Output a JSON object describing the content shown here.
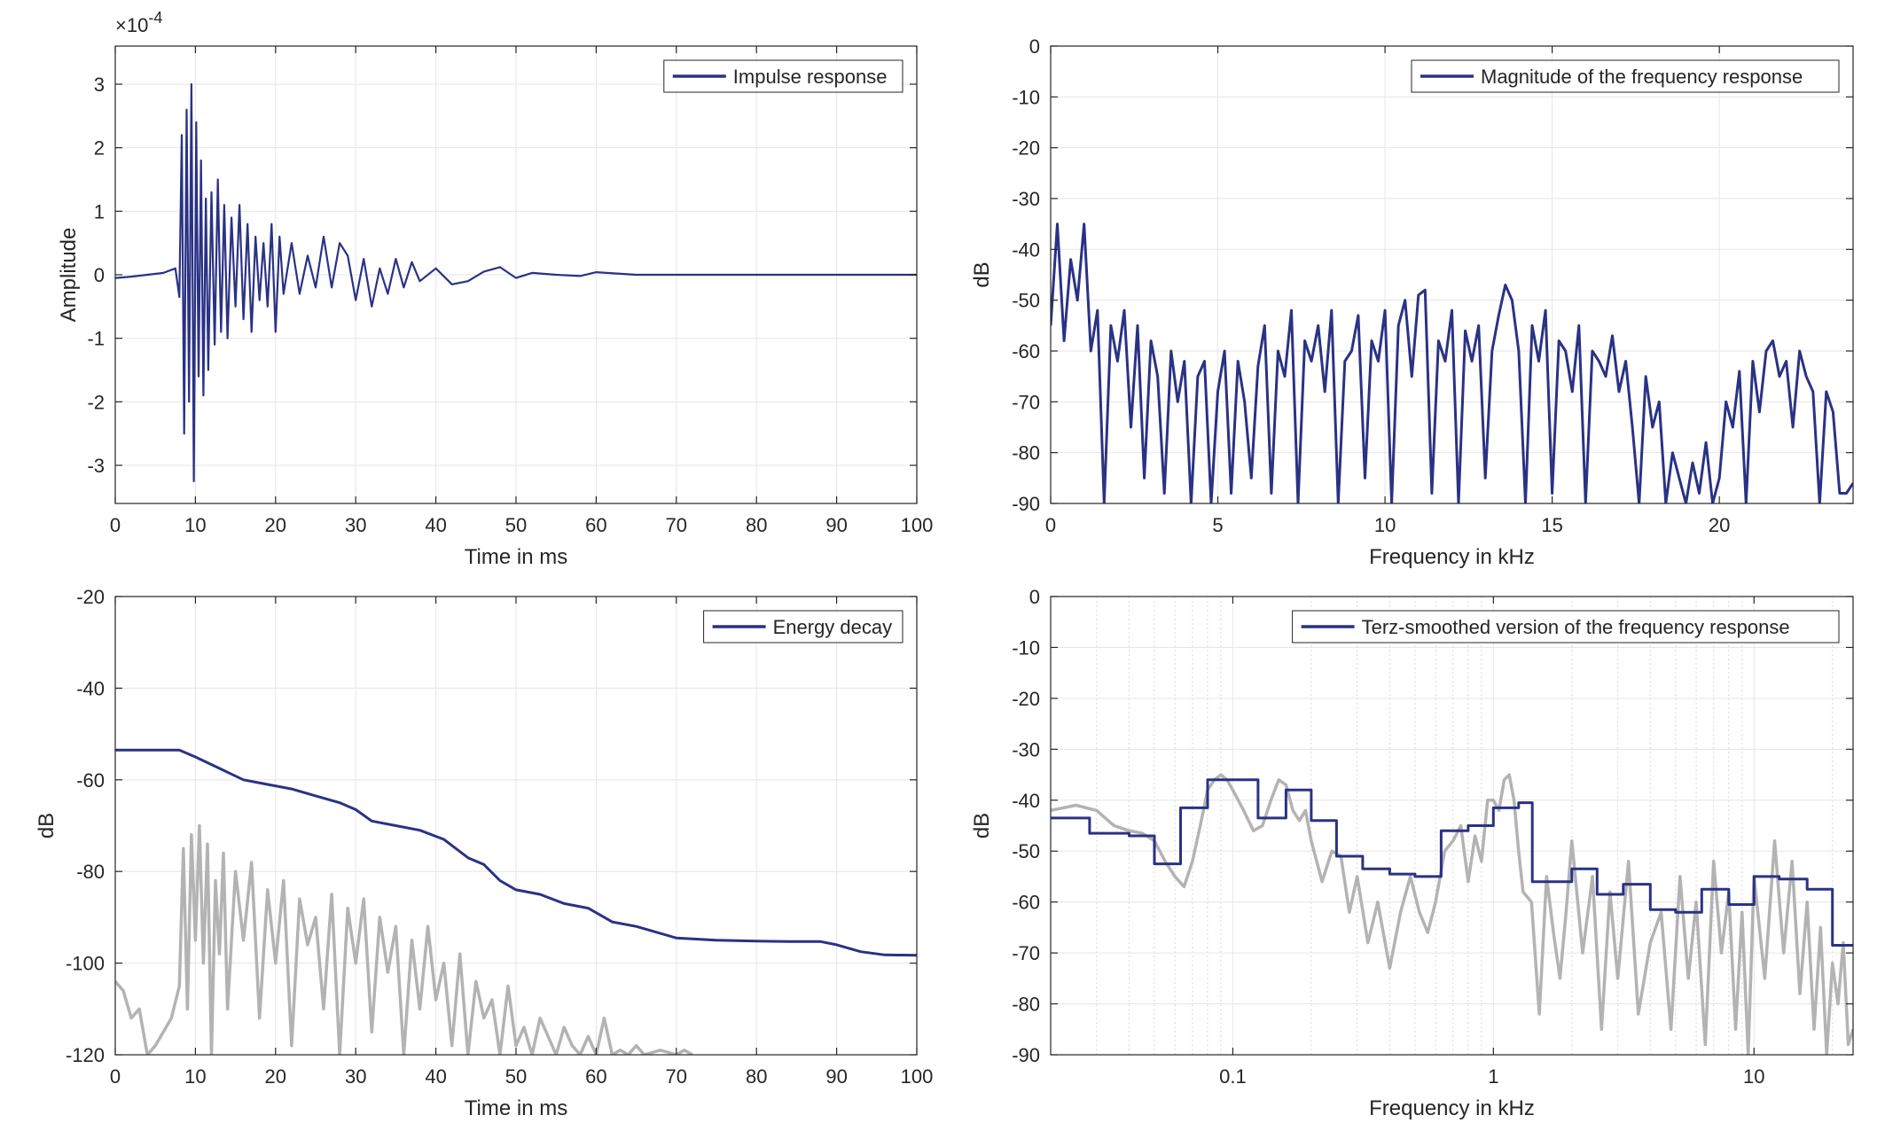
{
  "colors": {
    "series_navy": "#2a3284",
    "series_gray": "#b3b3b3",
    "grid": "#e6e6e6",
    "axis": "#262626"
  },
  "chart_data": [
    {
      "id": "impulse",
      "type": "line",
      "xlabel": "Time in ms",
      "ylabel": "Amplitude",
      "xlim": [
        0,
        100
      ],
      "ylim": [
        -3.6,
        3.6
      ],
      "y_multiplier": "×10",
      "y_multiplier_exponent": "-4",
      "xticks": [
        "0",
        "10",
        "20",
        "30",
        "40",
        "50",
        "60",
        "70",
        "80",
        "90",
        "100"
      ],
      "yticks": [
        "3",
        "2",
        "1",
        "0",
        "-1",
        "-2",
        "-3"
      ],
      "grid": true,
      "legend_position": "top-right",
      "series": [
        {
          "name": "Impulse response",
          "color": "#2a3284",
          "x": [
            0,
            2,
            4,
            6,
            7.5,
            8,
            8.3,
            8.6,
            8.9,
            9.2,
            9.5,
            9.8,
            10.1,
            10.4,
            10.7,
            11,
            11.3,
            11.6,
            12,
            12.4,
            12.8,
            13.2,
            13.6,
            14,
            14.5,
            15,
            15.5,
            16,
            16.5,
            17,
            17.5,
            18,
            18.5,
            19,
            19.5,
            20,
            20.5,
            21,
            22,
            23,
            24,
            25,
            26,
            27,
            28,
            29,
            30,
            31,
            32,
            33,
            34,
            35,
            36,
            37,
            38,
            40,
            42,
            44,
            46,
            48,
            50,
            52,
            55,
            58,
            60,
            65,
            70,
            80,
            90,
            100
          ],
          "y": [
            -0.05,
            -0.03,
            0,
            0.03,
            0.1,
            -0.35,
            2.2,
            -2.5,
            2.6,
            -2.0,
            3.0,
            -3.25,
            2.4,
            -1.6,
            1.8,
            -1.9,
            1.2,
            -1.5,
            1.3,
            -1.1,
            1.5,
            -0.9,
            1.1,
            -1.0,
            0.9,
            -0.5,
            1.1,
            -0.7,
            0.8,
            -0.9,
            0.6,
            -0.4,
            0.5,
            -0.5,
            0.8,
            -0.9,
            0.6,
            -0.3,
            0.5,
            -0.3,
            0.3,
            -0.2,
            0.6,
            -0.2,
            0.5,
            0.3,
            -0.4,
            0.25,
            -0.5,
            0.1,
            -0.3,
            0.25,
            -0.2,
            0.2,
            -0.1,
            0.1,
            -0.15,
            -0.1,
            0.05,
            0.12,
            -0.05,
            0.03,
            0.0,
            -0.02,
            0.04,
            0.0,
            0.0,
            0.0,
            0.0,
            0.0
          ]
        }
      ]
    },
    {
      "id": "magnitude",
      "type": "line",
      "xlabel": "Frequency in kHz",
      "ylabel": "dB",
      "xlim": [
        0,
        24
      ],
      "ylim": [
        -90,
        0
      ],
      "xticks": [
        "0",
        "5",
        "10",
        "15",
        "20"
      ],
      "yticks": [
        "0",
        "-10",
        "-20",
        "-30",
        "-40",
        "-50",
        "-60",
        "-70",
        "-80",
        "-90"
      ],
      "grid": true,
      "legend_position": "top-right",
      "series": [
        {
          "name": "Magnitude of the frequency response",
          "color": "#2a3284",
          "x": [
            0,
            0.2,
            0.4,
            0.6,
            0.8,
            1.0,
            1.2,
            1.4,
            1.6,
            1.8,
            2.0,
            2.2,
            2.4,
            2.6,
            2.8,
            3.0,
            3.2,
            3.4,
            3.6,
            3.8,
            4.0,
            4.2,
            4.4,
            4.6,
            4.8,
            5.0,
            5.2,
            5.4,
            5.6,
            5.8,
            6.0,
            6.2,
            6.4,
            6.6,
            6.8,
            7.0,
            7.2,
            7.4,
            7.6,
            7.8,
            8.0,
            8.2,
            8.4,
            8.6,
            8.8,
            9.0,
            9.2,
            9.4,
            9.6,
            9.8,
            10.0,
            10.2,
            10.4,
            10.6,
            10.8,
            11.0,
            11.2,
            11.4,
            11.6,
            11.8,
            12.0,
            12.2,
            12.4,
            12.6,
            12.8,
            13.0,
            13.2,
            13.4,
            13.6,
            13.8,
            14.0,
            14.2,
            14.4,
            14.6,
            14.8,
            15.0,
            15.2,
            15.4,
            15.6,
            15.8,
            16.0,
            16.2,
            16.4,
            16.6,
            16.8,
            17.0,
            17.2,
            17.4,
            17.6,
            17.8,
            18.0,
            18.2,
            18.4,
            18.6,
            18.8,
            19.0,
            19.2,
            19.4,
            19.6,
            19.8,
            20.0,
            20.2,
            20.4,
            20.6,
            20.8,
            21.0,
            21.2,
            21.4,
            21.6,
            21.8,
            22.0,
            22.2,
            22.4,
            22.6,
            22.8,
            23.0,
            23.2,
            23.4,
            23.6,
            23.8,
            24.0
          ],
          "y": [
            -55,
            -35,
            -58,
            -42,
            -50,
            -35,
            -60,
            -52,
            -90,
            -55,
            -62,
            -52,
            -75,
            -55,
            -85,
            -58,
            -65,
            -88,
            -60,
            -70,
            -62,
            -90,
            -65,
            -62,
            -90,
            -68,
            -60,
            -88,
            -62,
            -70,
            -85,
            -63,
            -55,
            -88,
            -60,
            -65,
            -52,
            -90,
            -58,
            -62,
            -55,
            -68,
            -52,
            -90,
            -62,
            -60,
            -53,
            -85,
            -58,
            -62,
            -52,
            -90,
            -55,
            -50,
            -65,
            -49,
            -48,
            -88,
            -58,
            -62,
            -52,
            -90,
            -56,
            -62,
            -55,
            -85,
            -60,
            -53,
            -47,
            -50,
            -60,
            -90,
            -55,
            -62,
            -52,
            -88,
            -58,
            -60,
            -68,
            -55,
            -90,
            -60,
            -62,
            -65,
            -57,
            -68,
            -62,
            -75,
            -90,
            -65,
            -75,
            -70,
            -90,
            -80,
            -85,
            -90,
            -82,
            -88,
            -78,
            -90,
            -85,
            -70,
            -75,
            -64,
            -90,
            -62,
            -72,
            -60,
            -58,
            -65,
            -62,
            -75,
            -60,
            -65,
            -68,
            -90,
            -68,
            -72,
            -88,
            -88,
            -86
          ]
        }
      ]
    },
    {
      "id": "energy",
      "type": "line",
      "xlabel": "Time in ms",
      "ylabel": "dB",
      "xlim": [
        0,
        100
      ],
      "ylim": [
        -120,
        -20
      ],
      "xticks": [
        "0",
        "10",
        "20",
        "30",
        "40",
        "50",
        "60",
        "70",
        "80",
        "90",
        "100"
      ],
      "yticks": [
        "-20",
        "-40",
        "-60",
        "-80",
        "-100",
        "-120"
      ],
      "grid": true,
      "legend_position": "top-right",
      "series": [
        {
          "name": "Energy decay",
          "color": "#2a3284",
          "x": [
            0,
            5,
            8,
            10,
            13,
            16,
            19,
            22,
            25,
            28,
            30,
            32,
            35,
            38,
            41,
            44,
            46,
            48,
            50,
            53,
            56,
            59,
            62,
            65,
            70,
            75,
            80,
            85,
            88,
            90,
            93,
            96,
            100
          ],
          "y": [
            -53.5,
            -53.5,
            -53.5,
            -55,
            -57.5,
            -60,
            -61,
            -62,
            -63.5,
            -65,
            -66.5,
            -69,
            -70,
            -71,
            -73,
            -77,
            -78.5,
            -82,
            -84,
            -85,
            -87,
            -88,
            -91,
            -92,
            -94.5,
            -95,
            -95.2,
            -95.3,
            -95.3,
            -96,
            -97.5,
            -98.2,
            -98.3
          ]
        },
        {
          "color": "#b3b3b3",
          "x": [
            0,
            1,
            2,
            3,
            4,
            5,
            6,
            7,
            8,
            8.5,
            9,
            9.5,
            10,
            10.5,
            11,
            11.5,
            12,
            12.5,
            13,
            13.5,
            14,
            15,
            16,
            17,
            18,
            19,
            20,
            21,
            22,
            23,
            24,
            25,
            26,
            27,
            28,
            29,
            30,
            31,
            32,
            33,
            34,
            35,
            36,
            37,
            38,
            39,
            40,
            41,
            42,
            43,
            44,
            45,
            46,
            47,
            48,
            49,
            50,
            51,
            52,
            53,
            54,
            55,
            56,
            57,
            58,
            59,
            60,
            61,
            62,
            63,
            64,
            65,
            66,
            68,
            70,
            71,
            72
          ],
          "y": [
            -104,
            -106,
            -112,
            -110,
            -120,
            -118,
            -115,
            -112,
            -105,
            -75,
            -110,
            -72,
            -95,
            -70,
            -100,
            -74,
            -120,
            -82,
            -98,
            -76,
            -110,
            -80,
            -95,
            -78,
            -112,
            -84,
            -100,
            -82,
            -118,
            -86,
            -96,
            -90,
            -110,
            -85,
            -120,
            -88,
            -100,
            -86,
            -115,
            -90,
            -102,
            -92,
            -120,
            -95,
            -110,
            -92,
            -108,
            -100,
            -118,
            -98,
            -120,
            -104,
            -112,
            -108,
            -120,
            -105,
            -118,
            -114,
            -120,
            -112,
            -116,
            -120,
            -114,
            -118,
            -120,
            -116,
            -120,
            -112,
            -120,
            -119,
            -120,
            -118,
            -120,
            -119,
            -120,
            -119,
            -120
          ]
        }
      ]
    },
    {
      "id": "terz",
      "type": "line",
      "xlabel": "Frequency in kHz",
      "ylabel": "dB",
      "xscale": "log",
      "xlim": [
        0.02,
        24
      ],
      "ylim": [
        -90,
        0
      ],
      "xticks": [
        "0.1",
        "1",
        "10"
      ],
      "yticks": [
        "0",
        "-10",
        "-20",
        "-30",
        "-40",
        "-50",
        "-60",
        "-70",
        "-80",
        "-90"
      ],
      "grid": true,
      "legend_position": "top-right",
      "series": [
        {
          "name": "Terz-smoothed version of the frequency response",
          "color": "#2a3284",
          "x": [
            0.02,
            0.0282,
            0.0282,
            0.04,
            0.04,
            0.05,
            0.05,
            0.063,
            0.063,
            0.08,
            0.08,
            0.1,
            0.1,
            0.125,
            0.125,
            0.16,
            0.16,
            0.2,
            0.2,
            0.25,
            0.25,
            0.315,
            0.315,
            0.4,
            0.4,
            0.5,
            0.5,
            0.63,
            0.63,
            0.8,
            0.8,
            1.0,
            1.0,
            1.25,
            1.25,
            1.41,
            1.41,
            2.0,
            2.0,
            2.5,
            2.5,
            3.15,
            3.15,
            4.0,
            4.0,
            5.0,
            5.0,
            6.3,
            6.3,
            8.0,
            8.0,
            10.0,
            10.0,
            12.5,
            12.5,
            16.0,
            16.0,
            20.0,
            20.0,
            24.0
          ],
          "y": [
            -43.5,
            -43.5,
            -46.5,
            -46.5,
            -47,
            -47,
            -52.5,
            -52.5,
            -41.5,
            -41.5,
            -36,
            -36,
            -36,
            -36,
            -43.5,
            -43.5,
            -38,
            -38,
            -44,
            -44,
            -51,
            -51,
            -53.5,
            -53.5,
            -54.5,
            -54.5,
            -55,
            -55,
            -46,
            -46,
            -45,
            -45,
            -41.5,
            -41.5,
            -40.5,
            -40.5,
            -56,
            -56,
            -53.5,
            -53.5,
            -58.5,
            -58.5,
            -56.5,
            -56.5,
            -61.5,
            -61.5,
            -62,
            -62,
            -57.5,
            -57.5,
            -60.5,
            -60.5,
            -55,
            -55,
            -55.5,
            -55.5,
            -57.5,
            -57.5,
            -68.5,
            -68.5
          ]
        },
        {
          "color": "#b3b3b3",
          "x": [
            0.02,
            0.025,
            0.03,
            0.035,
            0.04,
            0.045,
            0.05,
            0.055,
            0.06,
            0.065,
            0.07,
            0.075,
            0.08,
            0.085,
            0.09,
            0.095,
            0.1,
            0.11,
            0.12,
            0.13,
            0.14,
            0.15,
            0.16,
            0.17,
            0.18,
            0.19,
            0.2,
            0.22,
            0.24,
            0.26,
            0.28,
            0.3,
            0.33,
            0.36,
            0.4,
            0.44,
            0.48,
            0.52,
            0.56,
            0.6,
            0.65,
            0.7,
            0.75,
            0.8,
            0.85,
            0.9,
            0.95,
            1.0,
            1.05,
            1.1,
            1.15,
            1.2,
            1.25,
            1.3,
            1.4,
            1.5,
            1.6,
            1.7,
            1.8,
            1.9,
            2.0,
            2.2,
            2.4,
            2.6,
            2.8,
            3.0,
            3.3,
            3.6,
            4.0,
            4.4,
            4.8,
            5.2,
            5.6,
            6.0,
            6.5,
            7.0,
            7.5,
            8.0,
            8.5,
            9.0,
            9.5,
            10.0,
            11.0,
            12.0,
            13.0,
            14.0,
            15.0,
            16.0,
            17.0,
            18.0,
            19.0,
            20.0,
            21.0,
            22.0,
            23.0,
            24.0
          ],
          "y": [
            -42,
            -41,
            -42,
            -45,
            -46,
            -46.5,
            -48,
            -52,
            -55,
            -57,
            -52,
            -45,
            -38,
            -36,
            -35,
            -36,
            -38,
            -42,
            -46,
            -45,
            -40,
            -36,
            -37,
            -42,
            -44,
            -42,
            -48,
            -56,
            -50,
            -51,
            -62,
            -55,
            -68,
            -60,
            -73,
            -62,
            -55,
            -62,
            -66,
            -60,
            -50,
            -48,
            -45,
            -56,
            -47,
            -52,
            -40,
            -40,
            -42,
            -36,
            -35,
            -40,
            -50,
            -58,
            -60,
            -82,
            -55,
            -66,
            -75,
            -62,
            -48,
            -70,
            -55,
            -85,
            -58,
            -75,
            -52,
            -82,
            -68,
            -62,
            -85,
            -55,
            -75,
            -60,
            -88,
            -52,
            -70,
            -58,
            -85,
            -62,
            -90,
            -55,
            -75,
            -48,
            -70,
            -52,
            -78,
            -60,
            -85,
            -65,
            -90,
            -72,
            -80,
            -68,
            -88,
            -85
          ]
        }
      ]
    }
  ]
}
